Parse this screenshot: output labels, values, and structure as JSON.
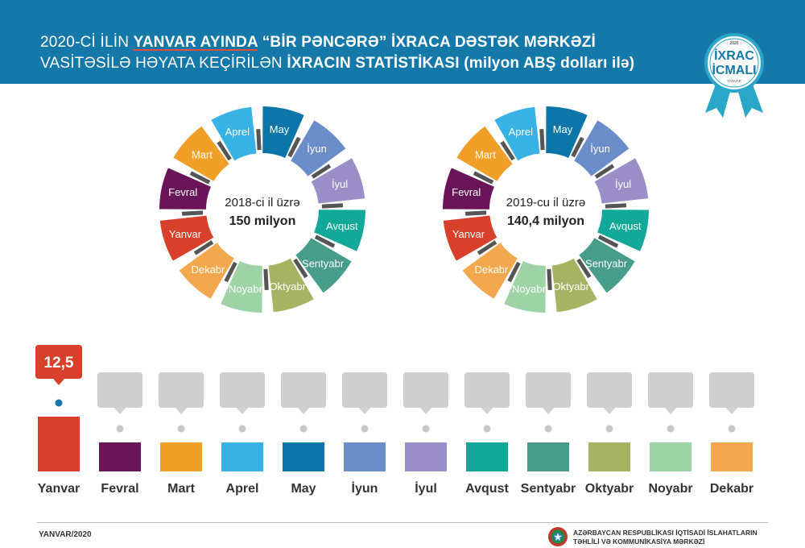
{
  "header": {
    "title_l1_a": "2020-Cİ İLİN ",
    "title_l1_b": "YANVAR AYINDA",
    "title_l1_c": " “BİR PƏNCƏRƏ” İXRACA DƏSTƏK MƏRKƏZİ",
    "title_l2_a": "VASİTƏSİLƏ HƏYATA KEÇİRİLƏN ",
    "title_l2_b": "İXRACIN STATİSTİKASI (milyon ABŞ dolları ilə)"
  },
  "badge": {
    "year": "2020",
    "line1": "İXRAC",
    "line2": "İCMALI",
    "sub": "YANVAR",
    "ribbon_color": "#2aa6c9"
  },
  "months": [
    "Yanvar",
    "Fevral",
    "Mart",
    "Aprel",
    "May",
    "İyun",
    "İyul",
    "Avqust",
    "Sentyabr",
    "Oktyabr",
    "Noyabr",
    "Dekabr"
  ],
  "month_colors": [
    "#d9402b",
    "#6a1459",
    "#f0a028",
    "#38b2e4",
    "#0c76a8",
    "#6a8cc8",
    "#9b8ec9",
    "#12a89a",
    "#469d8a",
    "#a5b363",
    "#9ed3a6",
    "#f3a84d"
  ],
  "donuts": [
    {
      "line1": "2018-ci il üzrə",
      "line2": "150 milyon"
    },
    {
      "line1": "2019-cu il üzrə",
      "line2": "140,4 milyon"
    }
  ],
  "chart_data": {
    "type": "bar",
    "categories": [
      "Yanvar",
      "Fevral",
      "Mart",
      "Aprel",
      "May",
      "İyun",
      "İyul",
      "Avqust",
      "Sentyabr",
      "Oktyabr",
      "Noyabr",
      "Dekabr"
    ],
    "values": [
      12.5,
      null,
      null,
      null,
      null,
      null,
      null,
      null,
      null,
      null,
      null,
      null
    ],
    "data_labels": [
      "12,5",
      "",
      "",
      "",
      "",
      "",
      "",
      "",
      "",
      "",
      "",
      ""
    ],
    "title": "",
    "xlabel": "",
    "ylabel": ""
  },
  "footer": {
    "date": "YANVAR/2020",
    "org_l1": "AZƏRBAYCAN RESPUBLİKASI İQTİSADİ İSLAHATLARIN",
    "org_l2": "TƏHLİLİ VƏ KOMMUNİKASİYA MƏRKƏZİ"
  }
}
